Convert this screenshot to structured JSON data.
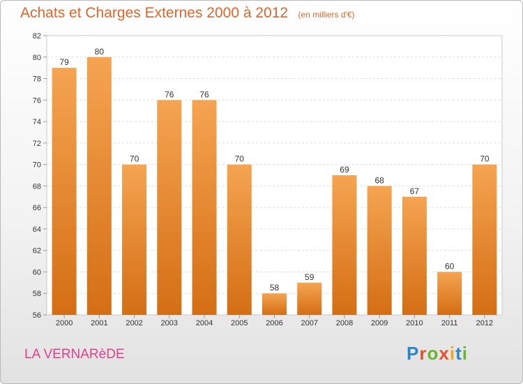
{
  "header": {
    "title": "Achats et Charges Externes 2000 à 2012",
    "subtitle": "(en milliers d'€)"
  },
  "footer": {
    "commune": "LA VERNARèDE",
    "brand": [
      "P",
      "r",
      "o",
      "x",
      "i",
      "t",
      "i"
    ],
    "brand_colors": [
      "#2a86c8",
      "#e8502e",
      "#67b52d",
      "#e8502e",
      "#f2a51e",
      "#2a86c8",
      "#67b52d"
    ]
  },
  "colors": {
    "bar_top": "#f5a451",
    "bar_bottom": "#d46e14",
    "title": "#e0652a",
    "commune": "#e0408a"
  },
  "chart_data": {
    "type": "bar",
    "categories": [
      "2000",
      "2001",
      "2002",
      "2003",
      "2004",
      "2005",
      "2006",
      "2007",
      "2008",
      "2009",
      "2010",
      "2011",
      "2012"
    ],
    "values": [
      79,
      80,
      70,
      76,
      76,
      70,
      58,
      59,
      69,
      68,
      67,
      60,
      70
    ],
    "title": "Achats et Charges Externes 2000 à 2012",
    "subtitle": "(en milliers d'€)",
    "xlabel": "",
    "ylabel": "",
    "ylim": [
      56,
      82
    ],
    "yticks": [
      56,
      58,
      60,
      62,
      64,
      66,
      68,
      70,
      72,
      74,
      76,
      78,
      80,
      82
    ],
    "grid": true,
    "legend": "none"
  }
}
